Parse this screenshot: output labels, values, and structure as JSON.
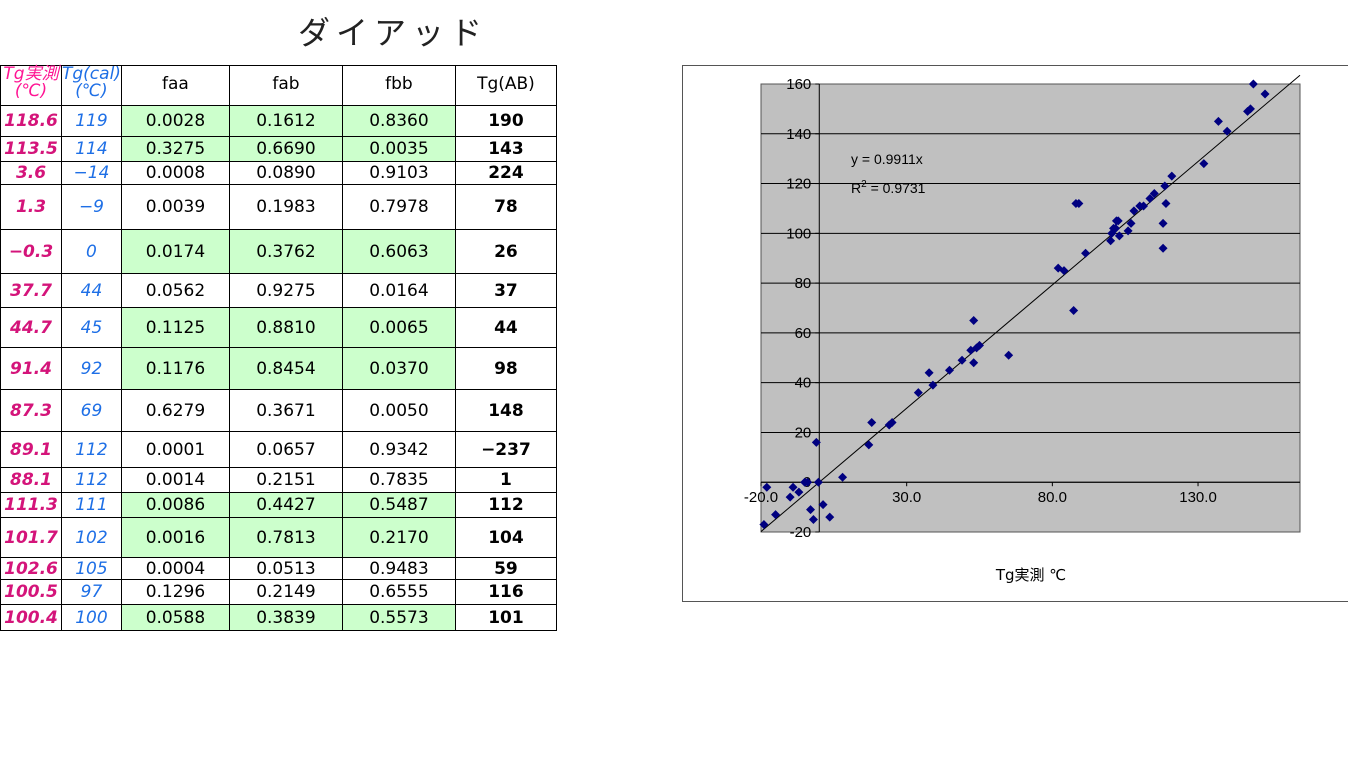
{
  "title": "ダイアッド",
  "table": {
    "headers": [
      "Tg実測\n(℃)",
      "Tg(cal)\n(℃)",
      "faa",
      "fab",
      "fbb",
      "Tg(AB)"
    ],
    "rows": [
      {
        "tg_meas": "118.6",
        "tg_cal": "119",
        "faa": "0.0028",
        "fab": "0.1612",
        "fbb": "0.8360",
        "tg_ab": "190",
        "highlight": true
      },
      {
        "tg_meas": "113.5",
        "tg_cal": "114",
        "faa": "0.3275",
        "fab": "0.6690",
        "fbb": "0.0035",
        "tg_ab": "143",
        "highlight": true
      },
      {
        "tg_meas": "3.6",
        "tg_cal": "−14",
        "faa": "0.0008",
        "fab": "0.0890",
        "fbb": "0.9103",
        "tg_ab": "224",
        "highlight": false
      },
      {
        "tg_meas": "1.3",
        "tg_cal": "−9",
        "faa": "0.0039",
        "fab": "0.1983",
        "fbb": "0.7978",
        "tg_ab": "78",
        "highlight": false
      },
      {
        "tg_meas": "−0.3",
        "tg_cal": "0",
        "faa": "0.0174",
        "fab": "0.3762",
        "fbb": "0.6063",
        "tg_ab": "26",
        "highlight": true
      },
      {
        "tg_meas": "37.7",
        "tg_cal": "44",
        "faa": "0.0562",
        "fab": "0.9275",
        "fbb": "0.0164",
        "tg_ab": "37",
        "highlight": false
      },
      {
        "tg_meas": "44.7",
        "tg_cal": "45",
        "faa": "0.1125",
        "fab": "0.8810",
        "fbb": "0.0065",
        "tg_ab": "44",
        "highlight": true
      },
      {
        "tg_meas": "91.4",
        "tg_cal": "92",
        "faa": "0.1176",
        "fab": "0.8454",
        "fbb": "0.0370",
        "tg_ab": "98",
        "highlight": true
      },
      {
        "tg_meas": "87.3",
        "tg_cal": "69",
        "faa": "0.6279",
        "fab": "0.3671",
        "fbb": "0.0050",
        "tg_ab": "148",
        "highlight": false
      },
      {
        "tg_meas": "89.1",
        "tg_cal": "112",
        "faa": "0.0001",
        "fab": "0.0657",
        "fbb": "0.9342",
        "tg_ab": "−237",
        "highlight": false
      },
      {
        "tg_meas": "88.1",
        "tg_cal": "112",
        "faa": "0.0014",
        "fab": "0.2151",
        "fbb": "0.7835",
        "tg_ab": "1",
        "highlight": false
      },
      {
        "tg_meas": "111.3",
        "tg_cal": "111",
        "faa": "0.0086",
        "fab": "0.4427",
        "fbb": "0.5487",
        "tg_ab": "112",
        "highlight": true
      },
      {
        "tg_meas": "101.7",
        "tg_cal": "102",
        "faa": "0.0016",
        "fab": "0.7813",
        "fbb": "0.2170",
        "tg_ab": "104",
        "highlight": true
      },
      {
        "tg_meas": "102.6",
        "tg_cal": "105",
        "faa": "0.0004",
        "fab": "0.0513",
        "fbb": "0.9483",
        "tg_ab": "59",
        "highlight": false
      },
      {
        "tg_meas": "100.5",
        "tg_cal": "97",
        "faa": "0.1296",
        "fab": "0.2149",
        "fbb": "0.6555",
        "tg_ab": "116",
        "highlight": false
      },
      {
        "tg_meas": "100.4",
        "tg_cal": "100",
        "faa": "0.0588",
        "fab": "0.3839",
        "fbb": "0.5573",
        "tg_ab": "101",
        "highlight": true
      }
    ]
  },
  "colors": {
    "highlight": "#ccffcc",
    "measured": "#d4147a",
    "calculated": "#1e6fe6",
    "marker": "#000080",
    "plot_bg": "#c0c0c0"
  },
  "chart_data": {
    "type": "scatter",
    "xlabel": "Tg実測 ℃",
    "ylabel": "",
    "xlim": [
      -20,
      165
    ],
    "ylim": [
      -20,
      160
    ],
    "xticks": [
      "-20.0",
      "30.0",
      "80.0",
      "130.0"
    ],
    "yticks": [
      "-20",
      "0",
      "20",
      "40",
      "60",
      "80",
      "100",
      "120",
      "140",
      "160"
    ],
    "grid": true,
    "trendline": {
      "equation": "y = 0.9911x",
      "r2_prefix": "R",
      "r2_sup": "2",
      "r2_value": " = 0.9731",
      "slope": 0.9911
    },
    "points": [
      [
        -19,
        -17
      ],
      [
        -18,
        -2
      ],
      [
        -15,
        -13
      ],
      [
        -10,
        -6
      ],
      [
        -9,
        -2
      ],
      [
        -7,
        -4
      ],
      [
        -5,
        0
      ],
      [
        -4,
        0
      ],
      [
        -3,
        -11
      ],
      [
        -2,
        -15
      ],
      [
        -1,
        16
      ],
      [
        3.6,
        -14
      ],
      [
        1.3,
        -9
      ],
      [
        -0.3,
        0
      ],
      [
        8,
        2
      ],
      [
        17,
        15
      ],
      [
        18,
        24
      ],
      [
        24,
        23
      ],
      [
        25,
        24
      ],
      [
        34,
        36
      ],
      [
        37.7,
        44
      ],
      [
        39,
        39
      ],
      [
        44.7,
        45
      ],
      [
        49,
        49
      ],
      [
        52,
        53
      ],
      [
        53,
        65
      ],
      [
        53,
        48
      ],
      [
        54,
        54
      ],
      [
        55,
        55
      ],
      [
        65,
        51
      ],
      [
        82,
        86
      ],
      [
        84,
        85
      ],
      [
        87.3,
        69
      ],
      [
        88.1,
        112
      ],
      [
        89.1,
        112
      ],
      [
        91.4,
        92
      ],
      [
        100,
        97
      ],
      [
        100.4,
        100
      ],
      [
        101,
        102
      ],
      [
        101.7,
        102
      ],
      [
        102,
        105
      ],
      [
        102.6,
        105
      ],
      [
        103,
        99
      ],
      [
        106,
        101
      ],
      [
        107,
        104
      ],
      [
        108,
        109
      ],
      [
        110,
        111
      ],
      [
        111.3,
        111
      ],
      [
        113.5,
        114
      ],
      [
        115,
        116
      ],
      [
        118,
        104
      ],
      [
        118,
        94
      ],
      [
        118.6,
        119
      ],
      [
        119,
        112
      ],
      [
        121,
        123
      ],
      [
        132,
        128
      ],
      [
        137,
        145
      ],
      [
        140,
        141
      ],
      [
        147,
        149
      ],
      [
        148,
        150
      ],
      [
        149,
        160
      ],
      [
        153,
        156
      ]
    ]
  }
}
